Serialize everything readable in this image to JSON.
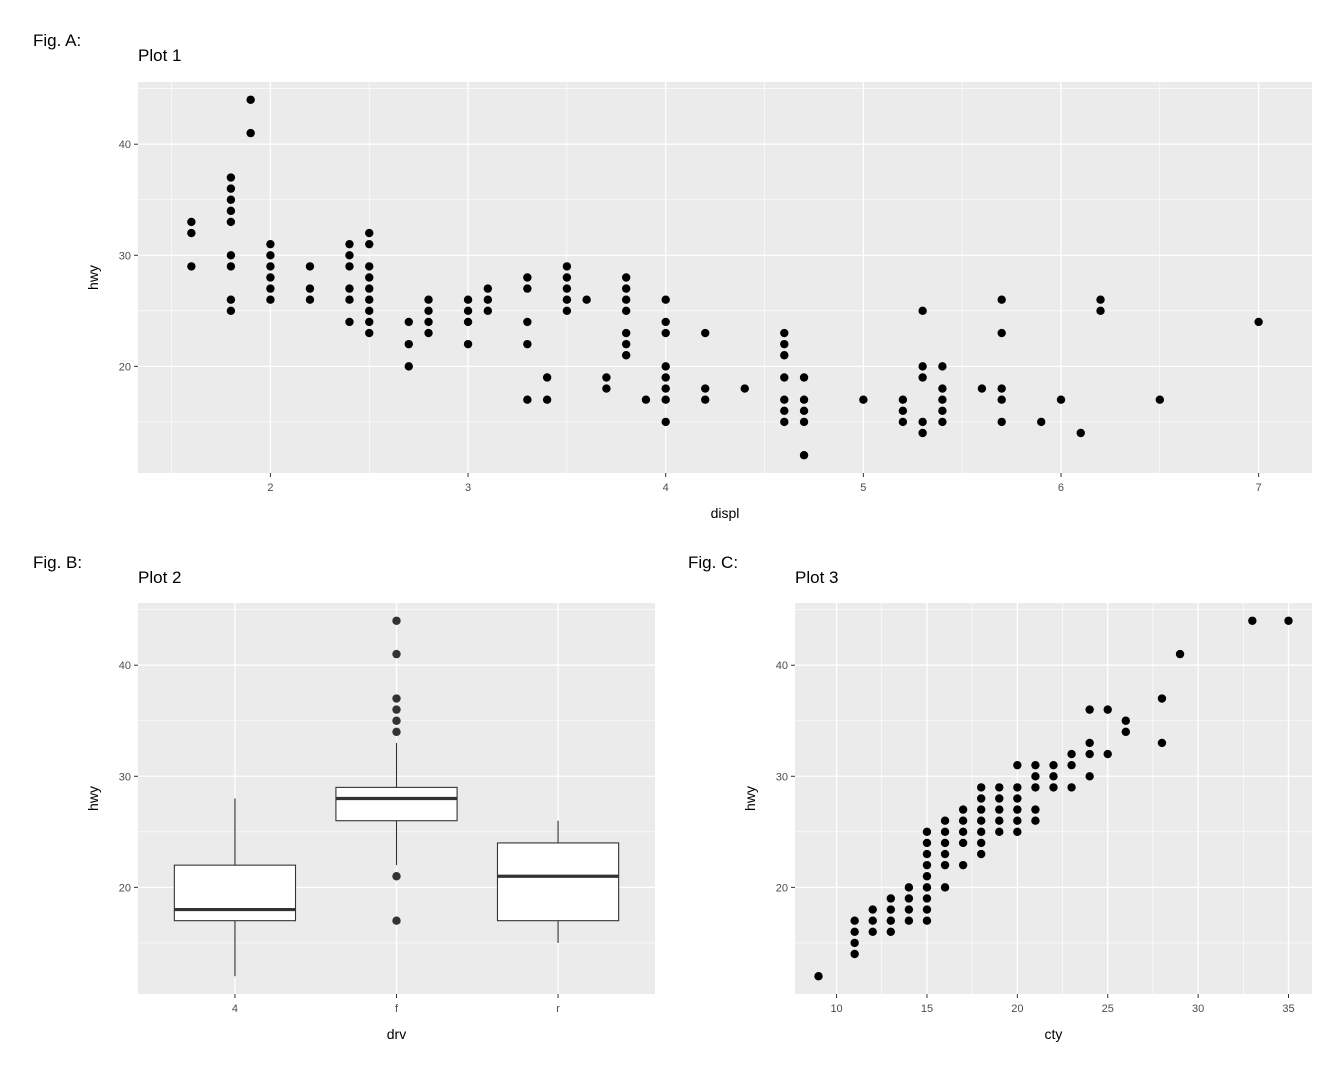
{
  "figures": [
    {
      "label": "Fig. A:",
      "title": "Plot 1"
    },
    {
      "label": "Fig. B:",
      "title": "Plot 2"
    },
    {
      "label": "Fig. C:",
      "title": "Plot 3"
    }
  ],
  "chart_data": [
    {
      "type": "scatter",
      "title": "Plot 1",
      "xlabel": "displ",
      "ylabel": "hwy",
      "xlim": [
        1.33,
        7.27
      ],
      "ylim": [
        10.4,
        45.6
      ],
      "xticks": [
        2,
        3,
        4,
        5,
        6,
        7
      ],
      "yticks": [
        20,
        30,
        40
      ],
      "grid": true,
      "points": [
        [
          1.6,
          29
        ],
        [
          1.6,
          32
        ],
        [
          1.6,
          33
        ],
        [
          1.8,
          25
        ],
        [
          1.8,
          26
        ],
        [
          1.8,
          29
        ],
        [
          1.8,
          30
        ],
        [
          1.8,
          33
        ],
        [
          1.8,
          34
        ],
        [
          1.8,
          35
        ],
        [
          1.8,
          36
        ],
        [
          1.8,
          37
        ],
        [
          1.9,
          41
        ],
        [
          1.9,
          44
        ],
        [
          2.0,
          26
        ],
        [
          2.0,
          27
        ],
        [
          2.0,
          28
        ],
        [
          2.0,
          29
        ],
        [
          2.0,
          30
        ],
        [
          2.0,
          31
        ],
        [
          2.2,
          26
        ],
        [
          2.2,
          27
        ],
        [
          2.2,
          29
        ],
        [
          2.4,
          24
        ],
        [
          2.4,
          26
        ],
        [
          2.4,
          27
        ],
        [
          2.4,
          29
        ],
        [
          2.4,
          30
        ],
        [
          2.4,
          31
        ],
        [
          2.5,
          23
        ],
        [
          2.5,
          24
        ],
        [
          2.5,
          25
        ],
        [
          2.5,
          26
        ],
        [
          2.5,
          27
        ],
        [
          2.5,
          28
        ],
        [
          2.5,
          29
        ],
        [
          2.5,
          31
        ],
        [
          2.5,
          32
        ],
        [
          2.7,
          20
        ],
        [
          2.7,
          22
        ],
        [
          2.7,
          24
        ],
        [
          2.8,
          23
        ],
        [
          2.8,
          24
        ],
        [
          2.8,
          25
        ],
        [
          2.8,
          26
        ],
        [
          3.0,
          22
        ],
        [
          3.0,
          24
        ],
        [
          3.0,
          25
        ],
        [
          3.0,
          26
        ],
        [
          3.1,
          25
        ],
        [
          3.1,
          26
        ],
        [
          3.1,
          27
        ],
        [
          3.3,
          17
        ],
        [
          3.3,
          22
        ],
        [
          3.3,
          24
        ],
        [
          3.3,
          27
        ],
        [
          3.3,
          28
        ],
        [
          3.4,
          17
        ],
        [
          3.4,
          19
        ],
        [
          3.5,
          25
        ],
        [
          3.5,
          26
        ],
        [
          3.5,
          27
        ],
        [
          3.5,
          28
        ],
        [
          3.5,
          29
        ],
        [
          3.6,
          26
        ],
        [
          3.7,
          18
        ],
        [
          3.7,
          19
        ],
        [
          3.8,
          21
        ],
        [
          3.8,
          22
        ],
        [
          3.8,
          23
        ],
        [
          3.8,
          25
        ],
        [
          3.8,
          26
        ],
        [
          3.8,
          27
        ],
        [
          3.8,
          28
        ],
        [
          3.9,
          17
        ],
        [
          4.0,
          15
        ],
        [
          4.0,
          17
        ],
        [
          4.0,
          18
        ],
        [
          4.0,
          19
        ],
        [
          4.0,
          20
        ],
        [
          4.0,
          23
        ],
        [
          4.0,
          24
        ],
        [
          4.0,
          26
        ],
        [
          4.2,
          17
        ],
        [
          4.2,
          18
        ],
        [
          4.2,
          23
        ],
        [
          4.4,
          18
        ],
        [
          4.6,
          15
        ],
        [
          4.6,
          16
        ],
        [
          4.6,
          17
        ],
        [
          4.6,
          19
        ],
        [
          4.6,
          21
        ],
        [
          4.6,
          22
        ],
        [
          4.6,
          23
        ],
        [
          4.7,
          12
        ],
        [
          4.7,
          15
        ],
        [
          4.7,
          16
        ],
        [
          4.7,
          17
        ],
        [
          4.7,
          19
        ],
        [
          5.0,
          17
        ],
        [
          5.2,
          15
        ],
        [
          5.2,
          16
        ],
        [
          5.2,
          17
        ],
        [
          5.3,
          14
        ],
        [
          5.3,
          15
        ],
        [
          5.3,
          19
        ],
        [
          5.3,
          20
        ],
        [
          5.3,
          25
        ],
        [
          5.4,
          15
        ],
        [
          5.4,
          16
        ],
        [
          5.4,
          17
        ],
        [
          5.4,
          18
        ],
        [
          5.4,
          20
        ],
        [
          5.6,
          18
        ],
        [
          5.7,
          15
        ],
        [
          5.7,
          17
        ],
        [
          5.7,
          18
        ],
        [
          5.7,
          23
        ],
        [
          5.7,
          26
        ],
        [
          5.9,
          15
        ],
        [
          6.0,
          17
        ],
        [
          6.1,
          14
        ],
        [
          6.2,
          25
        ],
        [
          6.2,
          26
        ],
        [
          6.5,
          17
        ],
        [
          7.0,
          24
        ]
      ]
    },
    {
      "type": "box",
      "title": "Plot 2",
      "xlabel": "drv",
      "ylabel": "hwy",
      "categories": [
        "4",
        "f",
        "r"
      ],
      "ylim": [
        10.4,
        45.6
      ],
      "yticks": [
        20,
        30,
        40
      ],
      "grid": true,
      "boxes": [
        {
          "category": "4",
          "whisker_low": 12,
          "q1": 17,
          "median": 18,
          "q3": 22,
          "whisker_high": 28,
          "outliers": []
        },
        {
          "category": "f",
          "whisker_low": 22,
          "q1": 26,
          "median": 28,
          "q3": 29,
          "whisker_high": 33,
          "outliers": [
            17,
            21,
            34,
            35,
            36,
            37,
            41,
            44
          ]
        },
        {
          "category": "r",
          "whisker_low": 15,
          "q1": 17,
          "median": 21,
          "q3": 24,
          "whisker_high": 26,
          "outliers": []
        }
      ]
    },
    {
      "type": "scatter",
      "title": "Plot 3",
      "xlabel": "cty",
      "ylabel": "hwy",
      "xlim": [
        7.7,
        36.3
      ],
      "ylim": [
        10.4,
        45.6
      ],
      "xticks": [
        10,
        15,
        20,
        25,
        30,
        35
      ],
      "yticks": [
        20,
        30,
        40
      ],
      "grid": true,
      "points": [
        [
          9,
          12
        ],
        [
          11,
          14
        ],
        [
          11,
          15
        ],
        [
          11,
          16
        ],
        [
          11,
          17
        ],
        [
          12,
          16
        ],
        [
          12,
          17
        ],
        [
          12,
          18
        ],
        [
          13,
          16
        ],
        [
          13,
          17
        ],
        [
          13,
          18
        ],
        [
          13,
          19
        ],
        [
          14,
          17
        ],
        [
          14,
          18
        ],
        [
          14,
          19
        ],
        [
          14,
          20
        ],
        [
          15,
          17
        ],
        [
          15,
          18
        ],
        [
          15,
          19
        ],
        [
          15,
          20
        ],
        [
          15,
          21
        ],
        [
          15,
          22
        ],
        [
          15,
          23
        ],
        [
          15,
          24
        ],
        [
          15,
          25
        ],
        [
          16,
          20
        ],
        [
          16,
          22
        ],
        [
          16,
          23
        ],
        [
          16,
          24
        ],
        [
          16,
          25
        ],
        [
          16,
          26
        ],
        [
          17,
          22
        ],
        [
          17,
          24
        ],
        [
          17,
          25
        ],
        [
          17,
          26
        ],
        [
          17,
          27
        ],
        [
          18,
          23
        ],
        [
          18,
          24
        ],
        [
          18,
          25
        ],
        [
          18,
          26
        ],
        [
          18,
          27
        ],
        [
          18,
          28
        ],
        [
          18,
          29
        ],
        [
          19,
          25
        ],
        [
          19,
          26
        ],
        [
          19,
          27
        ],
        [
          19,
          28
        ],
        [
          19,
          29
        ],
        [
          20,
          25
        ],
        [
          20,
          26
        ],
        [
          20,
          27
        ],
        [
          20,
          28
        ],
        [
          20,
          29
        ],
        [
          20,
          31
        ],
        [
          21,
          26
        ],
        [
          21,
          27
        ],
        [
          21,
          29
        ],
        [
          21,
          30
        ],
        [
          21,
          31
        ],
        [
          22,
          29
        ],
        [
          22,
          30
        ],
        [
          22,
          31
        ],
        [
          23,
          29
        ],
        [
          23,
          31
        ],
        [
          23,
          32
        ],
        [
          24,
          30
        ],
        [
          24,
          32
        ],
        [
          24,
          33
        ],
        [
          24,
          36
        ],
        [
          25,
          32
        ],
        [
          25,
          36
        ],
        [
          26,
          34
        ],
        [
          26,
          35
        ],
        [
          28,
          33
        ],
        [
          28,
          37
        ],
        [
          29,
          41
        ],
        [
          33,
          44
        ],
        [
          35,
          44
        ]
      ]
    }
  ]
}
